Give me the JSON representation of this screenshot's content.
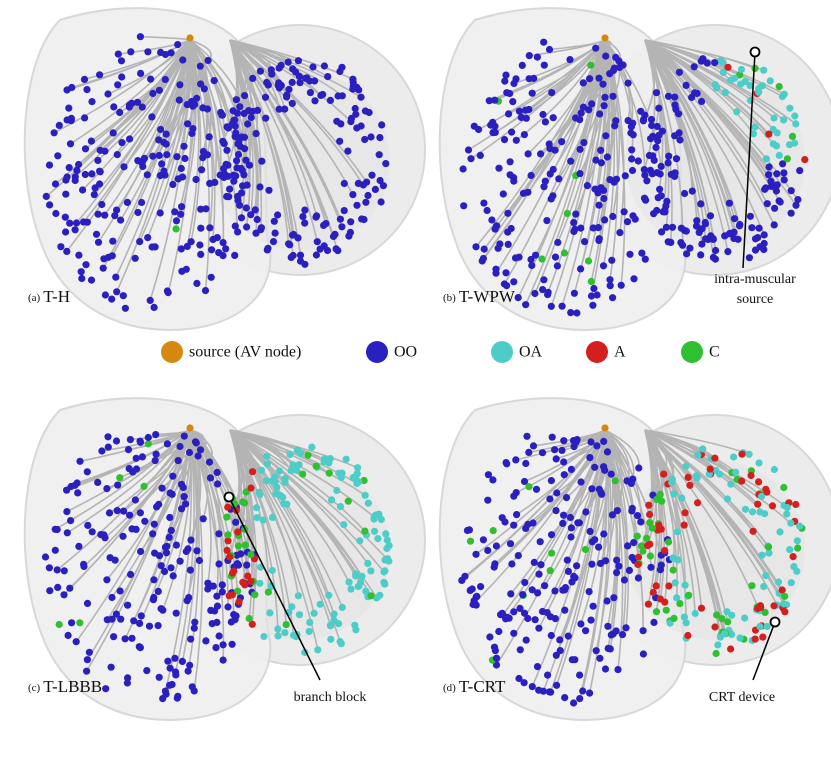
{
  "legend": [
    {
      "label": "source (AV node)",
      "color": "#d4880f"
    },
    {
      "label": "OO",
      "color": "#2a1fbf"
    },
    {
      "label": "OA",
      "color": "#4ecdc8"
    },
    {
      "label": "A",
      "color": "#d41f1f"
    },
    {
      "label": "C",
      "color": "#2fbf2f"
    }
  ],
  "panels": [
    {
      "tag": "(a)",
      "name": "T-H"
    },
    {
      "tag": "(b)",
      "name": "T-WPW",
      "annotation": [
        "intra-muscular",
        "source"
      ]
    },
    {
      "tag": "(c)",
      "name": "T-LBBB",
      "annotation": [
        "branch block"
      ]
    },
    {
      "tag": "(d)",
      "name": "T-CRT",
      "annotation": [
        "CRT device"
      ]
    }
  ]
}
